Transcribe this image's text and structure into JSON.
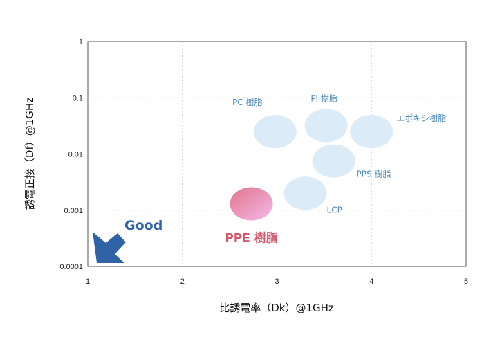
{
  "colors": {
    "bubble": "#dcebf8",
    "highlight_from": "#e2768d",
    "highlight_to": "#f3b8e8",
    "label": "#4a87b9",
    "highlight_label": "#d35a6c",
    "arrow": "#2f63a5",
    "grid": "#d0d0d0"
  },
  "chart_data": {
    "type": "scatter",
    "xlabel": "比誘電率（Dk）@1GHz",
    "ylabel": "誘電正接（Df）@1GHz",
    "xlim": [
      1,
      5
    ],
    "ylim": [
      0.0001,
      1
    ],
    "y_scale": "log",
    "grid": true,
    "x_ticks": [
      "1",
      "2",
      "3",
      "4",
      "5"
    ],
    "y_ticks": [
      "1",
      "0.1",
      "0.01",
      "0.001",
      "0.0001"
    ],
    "points": [
      {
        "label": "PC 樹脂",
        "x": 2.98,
        "y": 0.025,
        "highlight": false
      },
      {
        "label": "PI 樹脂",
        "x": 3.52,
        "y": 0.032,
        "highlight": false
      },
      {
        "label": "エポキシ樹脂",
        "x": 4.0,
        "y": 0.025,
        "highlight": false
      },
      {
        "label": "PPS 樹脂",
        "x": 3.6,
        "y": 0.0075,
        "highlight": false
      },
      {
        "label": "LCP",
        "x": 3.3,
        "y": 0.002,
        "highlight": false
      },
      {
        "label": "PPE 樹脂",
        "x": 2.73,
        "y": 0.0013,
        "highlight": true
      }
    ],
    "annotation": "Good"
  }
}
